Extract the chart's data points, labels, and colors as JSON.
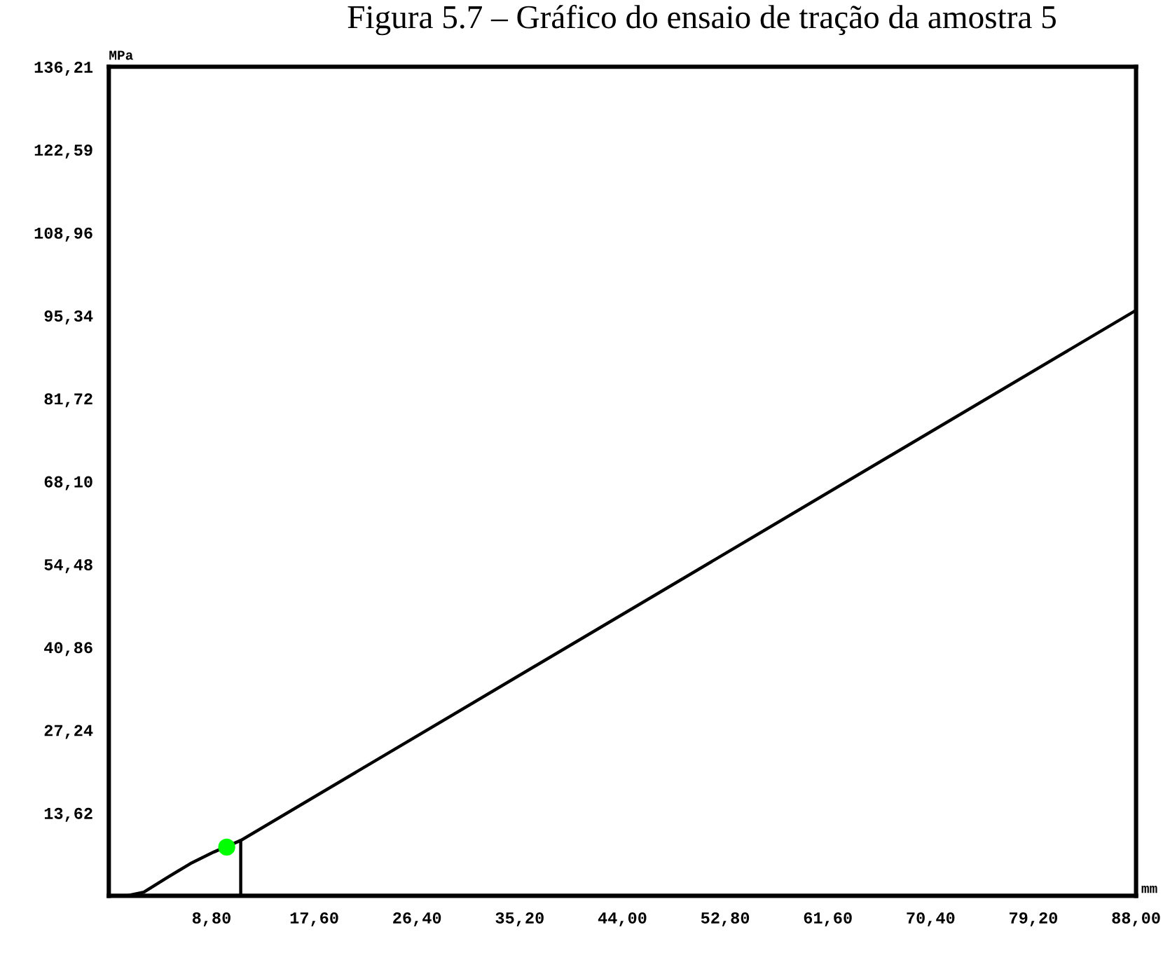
{
  "chart_data": {
    "type": "line",
    "title": "Figura 5.7 – Gráfico do ensaio de tração da amostra 5",
    "xlabel": "mm",
    "ylabel": "MPa",
    "series": [
      {
        "color": "#000000",
        "x": [
          0,
          1.5,
          3,
          5,
          7,
          9,
          11.3,
          11.3
        ],
        "values": [
          0,
          0,
          0.6,
          3,
          5.3,
          7.2,
          9.1,
          0
        ]
      },
      {
        "color": "#000000",
        "x": [
          11.3,
          88
        ],
        "values": [
          9.1,
          96.2
        ]
      },
      {
        "type": "scatter",
        "color": "#00ff00",
        "marker": "circle",
        "x": [
          10.1
        ],
        "values": [
          8.0
        ]
      }
    ],
    "xlim": [
      0,
      88
    ],
    "ylim": [
      0,
      136.21
    ],
    "xticks": [
      {
        "value": 8.8,
        "label": "8,80"
      },
      {
        "value": 17.6,
        "label": "17,60"
      },
      {
        "value": 26.4,
        "label": "26,40"
      },
      {
        "value": 35.2,
        "label": "35,20"
      },
      {
        "value": 44,
        "label": "44,00"
      },
      {
        "value": 52.8,
        "label": "52,80"
      },
      {
        "value": 61.6,
        "label": "61,60"
      },
      {
        "value": 70.4,
        "label": "70,40"
      },
      {
        "value": 79.2,
        "label": "79,20"
      },
      {
        "value": 88,
        "label": "88,00"
      }
    ],
    "yticks": [
      {
        "value": 13.62,
        "label": "13,62"
      },
      {
        "value": 27.24,
        "label": "27,24"
      },
      {
        "value": 40.86,
        "label": "40,86"
      },
      {
        "value": 54.48,
        "label": "54,48"
      },
      {
        "value": 68.1,
        "label": "68,10"
      },
      {
        "value": 81.72,
        "label": "81,72"
      },
      {
        "value": 95.34,
        "label": "95,34"
      },
      {
        "value": 108.96,
        "label": "108,96"
      },
      {
        "value": 122.59,
        "label": "122,59"
      },
      {
        "value": 136.21,
        "label": "136,21"
      }
    ],
    "grid": false,
    "legend": false
  }
}
